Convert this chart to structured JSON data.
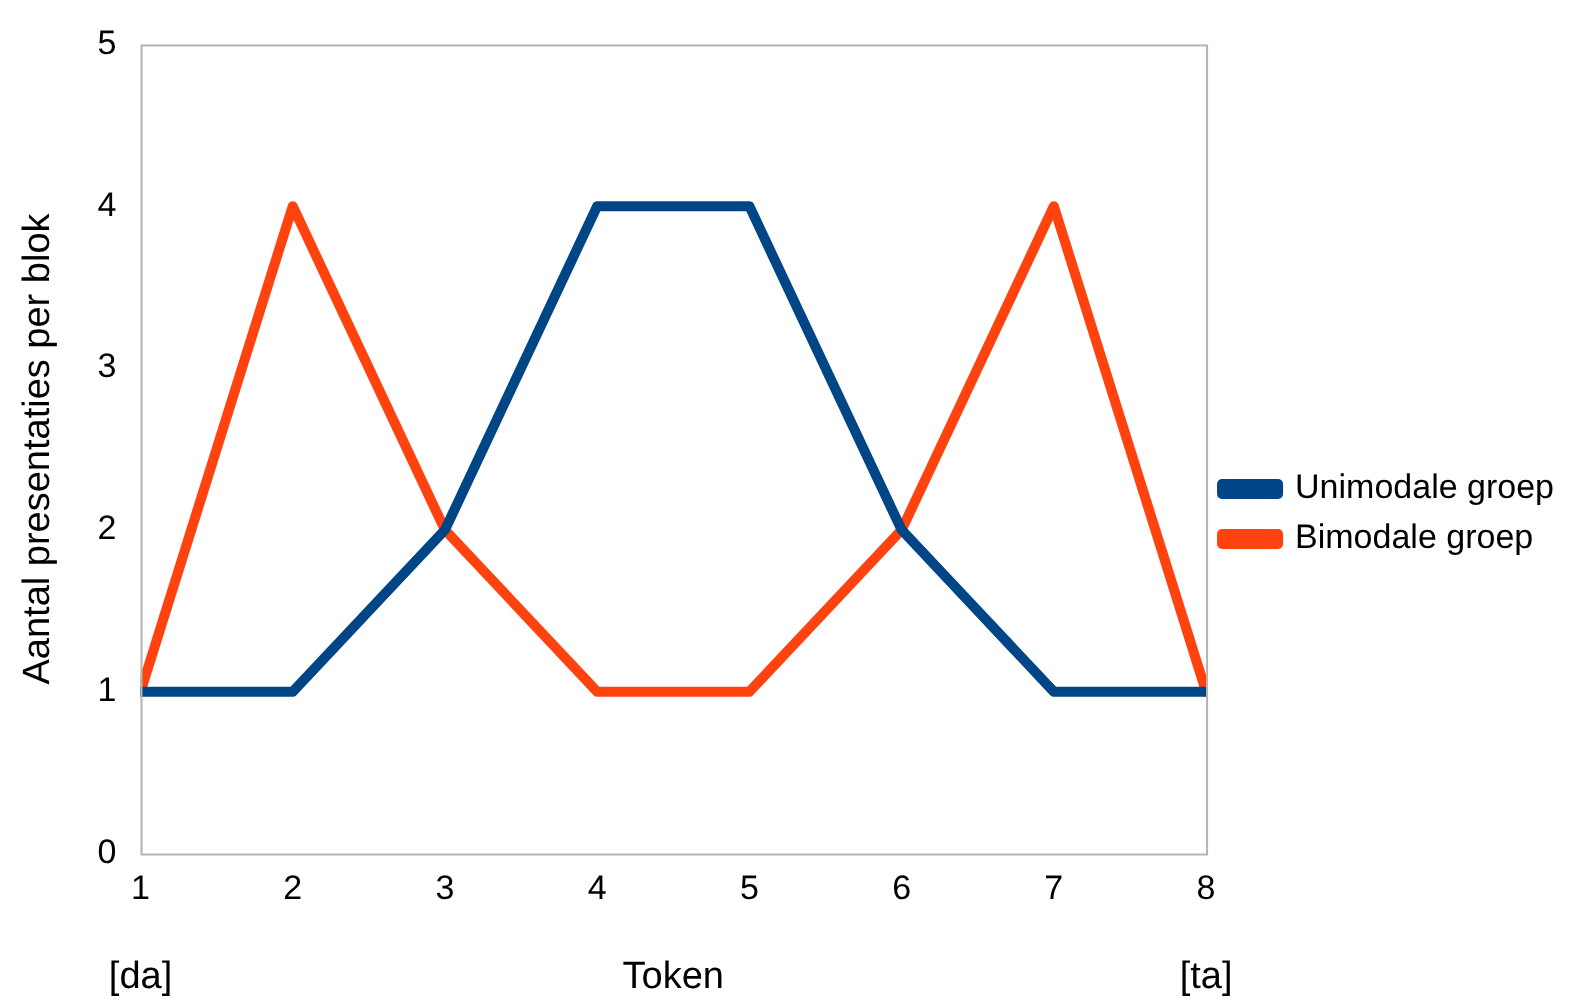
{
  "chart_data": {
    "type": "line",
    "xlabel": "Token",
    "ylabel": "Aantal presentaties per blok",
    "x": [
      1,
      2,
      3,
      4,
      5,
      6,
      7,
      8
    ],
    "xlim": [
      1,
      8
    ],
    "xticks": [
      1,
      2,
      3,
      4,
      5,
      6,
      7,
      8
    ],
    "ylim": [
      0,
      5
    ],
    "yticks": [
      0,
      1,
      2,
      3,
      4,
      5
    ],
    "series": [
      {
        "name": "Unimodale groep",
        "color": "#004586",
        "values": [
          1,
          1,
          2,
          4,
          4,
          2,
          1,
          1
        ]
      },
      {
        "name": "Bimodale groep",
        "color": "#ff420e",
        "values": [
          1,
          4,
          2,
          1,
          1,
          2,
          4,
          1
        ]
      }
    ],
    "annotations": [
      "[da]",
      "[ta]"
    ],
    "legend": "right",
    "grid": false,
    "marker": "none",
    "line_style": "solid"
  }
}
